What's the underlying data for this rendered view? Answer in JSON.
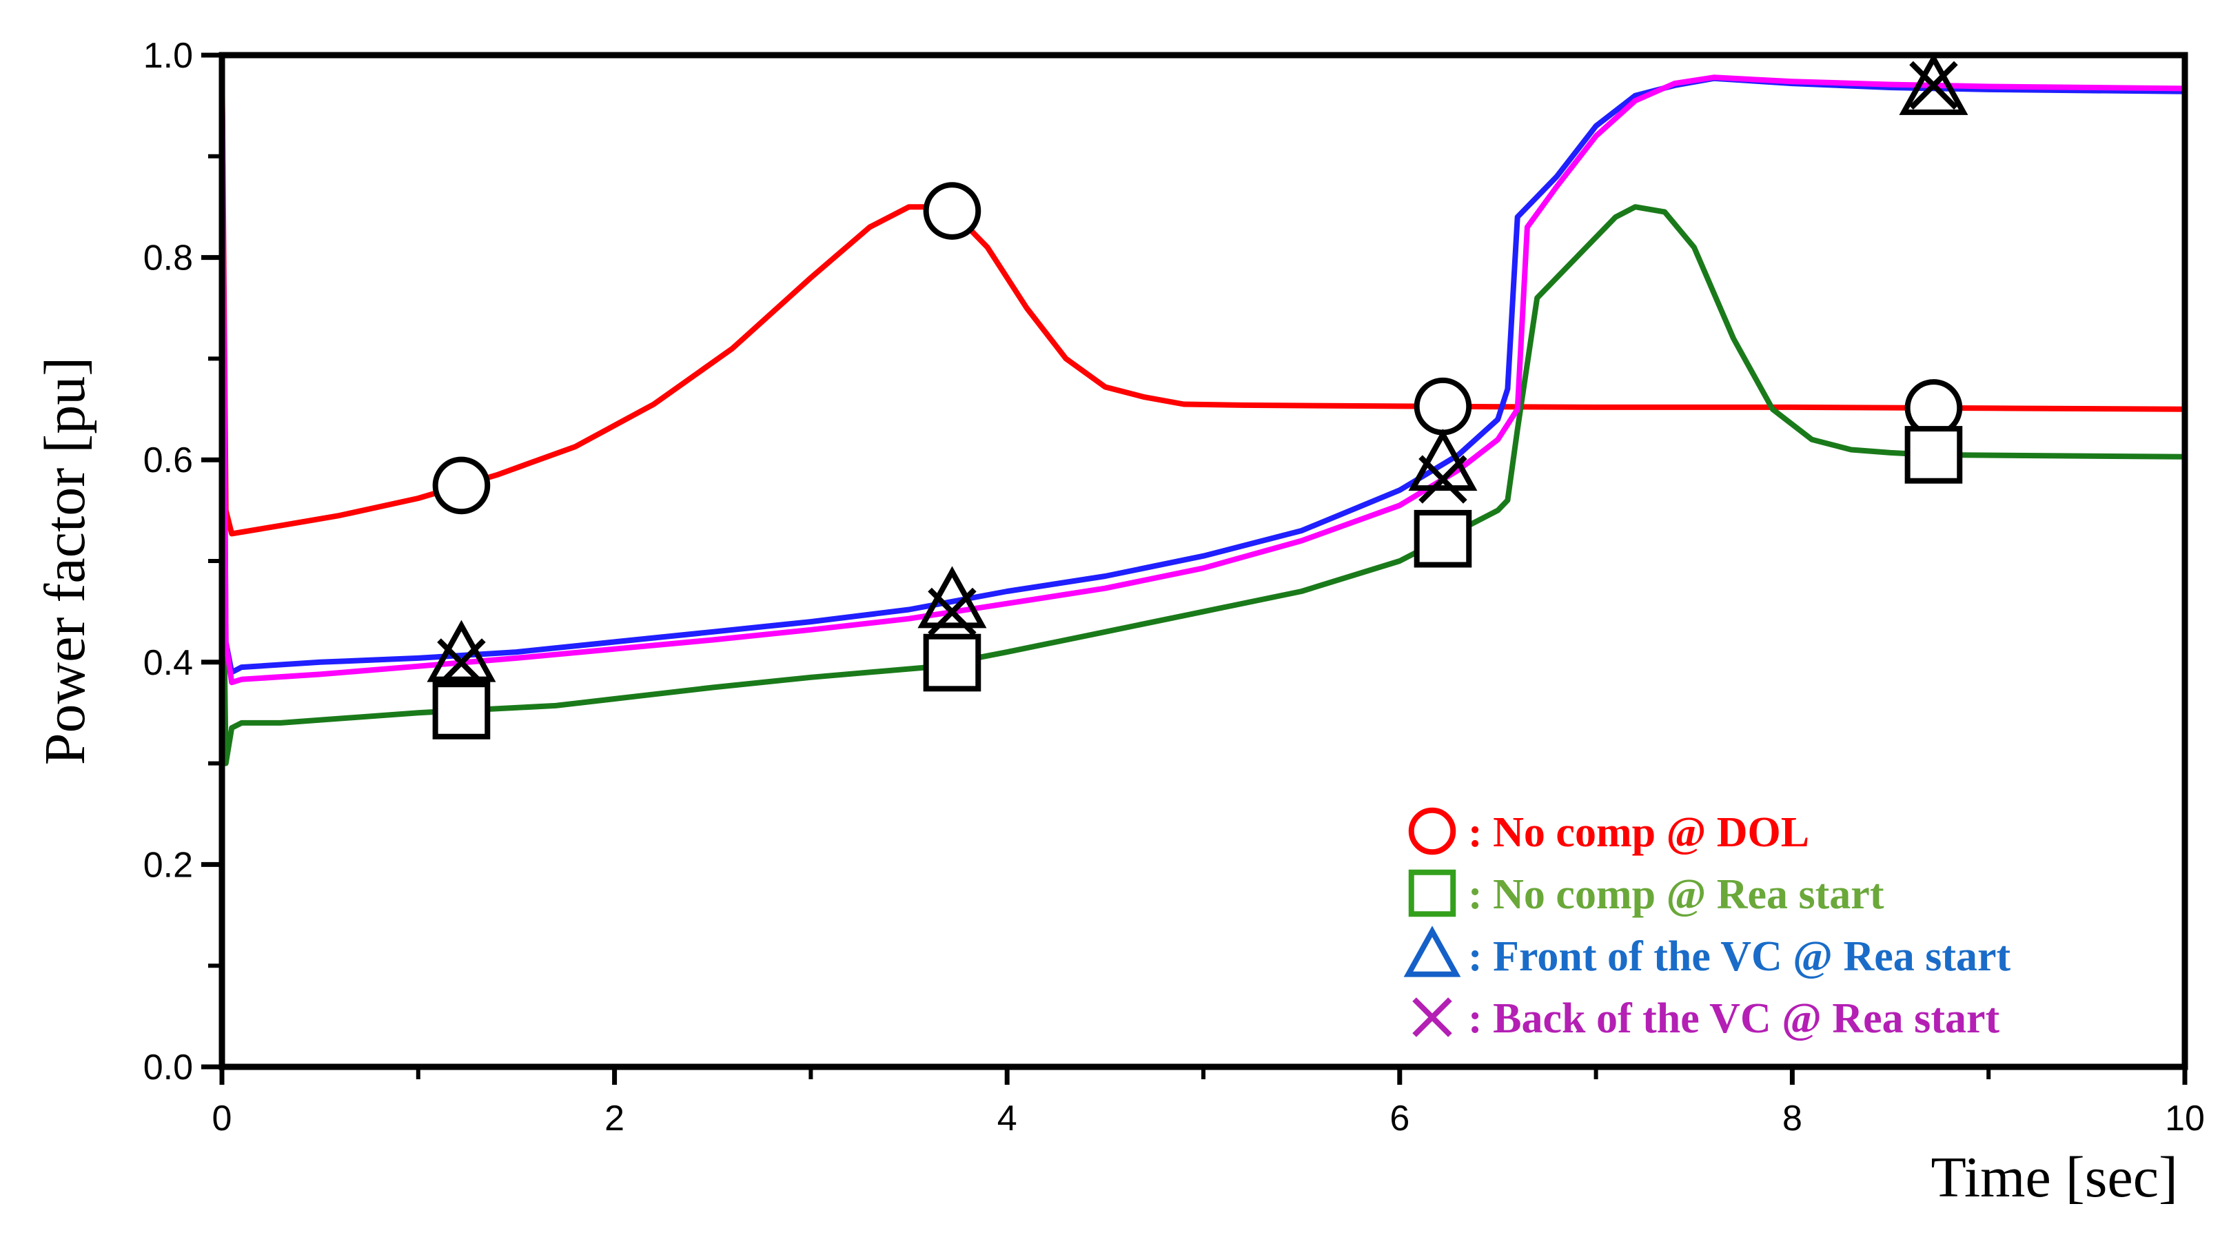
{
  "chart_data": {
    "type": "line",
    "xlabel": "Time [sec]",
    "ylabel": "Power factor [pu]",
    "xlim": [
      0,
      10
    ],
    "ylim": [
      0,
      1.0
    ],
    "x_ticks": [
      "0",
      "2",
      "4",
      "6",
      "8",
      "10"
    ],
    "y_ticks": [
      "0.0",
      "0.2",
      "0.4",
      "0.6",
      "0.8",
      "1.0"
    ],
    "grid": false,
    "legend_position": "bottom-right",
    "series": [
      {
        "name": ": No comp @ DOL",
        "color": "#ff0000",
        "marker": "circle",
        "marker_x": [
          1.22,
          3.72,
          6.22,
          8.72
        ],
        "x": [
          0,
          0.02,
          0.05,
          0.3,
          0.6,
          1.0,
          1.4,
          1.8,
          2.2,
          2.6,
          3.0,
          3.3,
          3.5,
          3.7,
          3.9,
          4.1,
          4.3,
          4.5,
          4.7,
          4.9,
          5.2,
          6.0,
          7.0,
          8.0,
          9.0,
          10.0
        ],
        "y": [
          1.0,
          0.55,
          0.527,
          0.535,
          0.545,
          0.562,
          0.585,
          0.613,
          0.655,
          0.71,
          0.78,
          0.83,
          0.85,
          0.85,
          0.81,
          0.75,
          0.7,
          0.672,
          0.662,
          0.655,
          0.654,
          0.653,
          0.652,
          0.652,
          0.651,
          0.65
        ]
      },
      {
        "name": ": No comp @ Rea start",
        "color": "#1a7a1a",
        "marker": "square",
        "marker_x": [
          1.22,
          3.72,
          6.22,
          8.72
        ],
        "x": [
          0,
          0.02,
          0.05,
          0.1,
          0.3,
          1.0,
          1.7,
          2.5,
          3.0,
          3.6,
          4.0,
          4.5,
          5.0,
          5.5,
          6.0,
          6.2,
          6.5,
          6.55,
          6.6,
          6.7,
          6.9,
          7.1,
          7.2,
          7.35,
          7.5,
          7.7,
          7.9,
          8.1,
          8.3,
          8.5,
          8.7,
          10.0
        ],
        "y": [
          0.6,
          0.3,
          0.335,
          0.34,
          0.34,
          0.35,
          0.357,
          0.375,
          0.385,
          0.395,
          0.41,
          0.43,
          0.45,
          0.47,
          0.5,
          0.52,
          0.55,
          0.56,
          0.63,
          0.76,
          0.8,
          0.84,
          0.85,
          0.845,
          0.81,
          0.72,
          0.65,
          0.62,
          0.61,
          0.607,
          0.605,
          0.603
        ]
      },
      {
        "name": ": Front of the VC @ Rea start",
        "color": "#1f1fff",
        "marker": "triangle",
        "marker_x": [
          1.22,
          3.72,
          6.22,
          8.72
        ],
        "x": [
          0,
          0.02,
          0.05,
          0.1,
          0.5,
          1.0,
          1.5,
          2.0,
          2.5,
          3.0,
          3.5,
          4.0,
          4.5,
          5.0,
          5.5,
          6.0,
          6.3,
          6.5,
          6.55,
          6.6,
          6.8,
          7.0,
          7.2,
          7.4,
          7.6,
          8.0,
          8.5,
          9.0,
          10.0
        ],
        "y": [
          1.0,
          0.42,
          0.39,
          0.395,
          0.4,
          0.404,
          0.41,
          0.42,
          0.43,
          0.44,
          0.452,
          0.47,
          0.485,
          0.505,
          0.53,
          0.57,
          0.605,
          0.64,
          0.67,
          0.84,
          0.88,
          0.93,
          0.96,
          0.97,
          0.977,
          0.972,
          0.968,
          0.966,
          0.964
        ]
      },
      {
        "name": ": Back of the VC @ Rea start",
        "color": "#ff00ff",
        "marker": "cross",
        "marker_x": [
          1.22,
          3.72,
          6.22,
          8.72
        ],
        "x": [
          0,
          0.02,
          0.05,
          0.1,
          0.5,
          1.0,
          1.5,
          2.0,
          2.5,
          3.0,
          3.5,
          4.0,
          4.5,
          5.0,
          5.5,
          6.0,
          6.3,
          6.5,
          6.6,
          6.65,
          6.8,
          7.0,
          7.2,
          7.4,
          7.6,
          8.0,
          8.5,
          9.0,
          10.0
        ],
        "y": [
          1.0,
          0.42,
          0.38,
          0.383,
          0.388,
          0.396,
          0.404,
          0.413,
          0.422,
          0.432,
          0.443,
          0.458,
          0.473,
          0.493,
          0.52,
          0.555,
          0.59,
          0.62,
          0.65,
          0.83,
          0.87,
          0.92,
          0.955,
          0.972,
          0.978,
          0.974,
          0.971,
          0.969,
          0.967
        ]
      }
    ]
  }
}
